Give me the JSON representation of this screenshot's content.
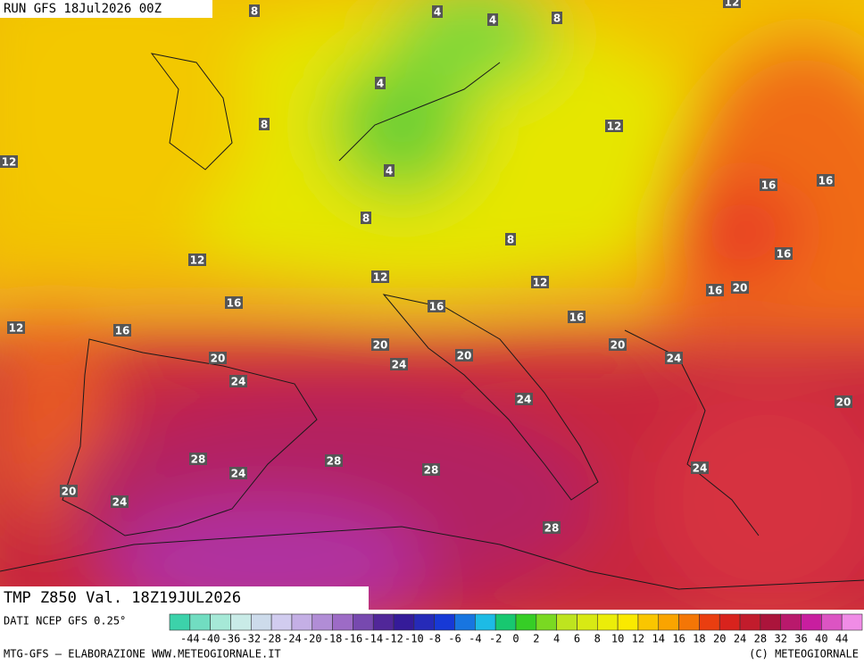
{
  "header": {
    "run": "RUN GFS 18Jul2026 00Z",
    "title": "TMP Z850 Val. 18Z19JUL2026"
  },
  "map": {
    "contour_labels": [
      8,
      4,
      4,
      8,
      12,
      4,
      8,
      12,
      12,
      4,
      16,
      16,
      8,
      8,
      12,
      12,
      12,
      16,
      16,
      20,
      16,
      16,
      16,
      12,
      16,
      20,
      20,
      20,
      24,
      20,
      24,
      24,
      24,
      20,
      28,
      28,
      24,
      28,
      24,
      20,
      24,
      28
    ]
  },
  "legend": {
    "source": "DATI NCEP GFS 0.25°",
    "ticks": [
      -44,
      -40,
      -36,
      -32,
      -28,
      -24,
      -20,
      -18,
      -16,
      -14,
      -12,
      -10,
      -8,
      -6,
      -4,
      -2,
      0,
      2,
      4,
      6,
      8,
      10,
      12,
      14,
      16,
      18,
      20,
      24,
      28,
      32,
      36,
      40,
      44
    ]
  },
  "footer": {
    "left": "MTG-GFS — ELABORAZIONE WWW.METEOGIORNALE.IT",
    "right": "(C) METEOGIORNALE"
  }
}
